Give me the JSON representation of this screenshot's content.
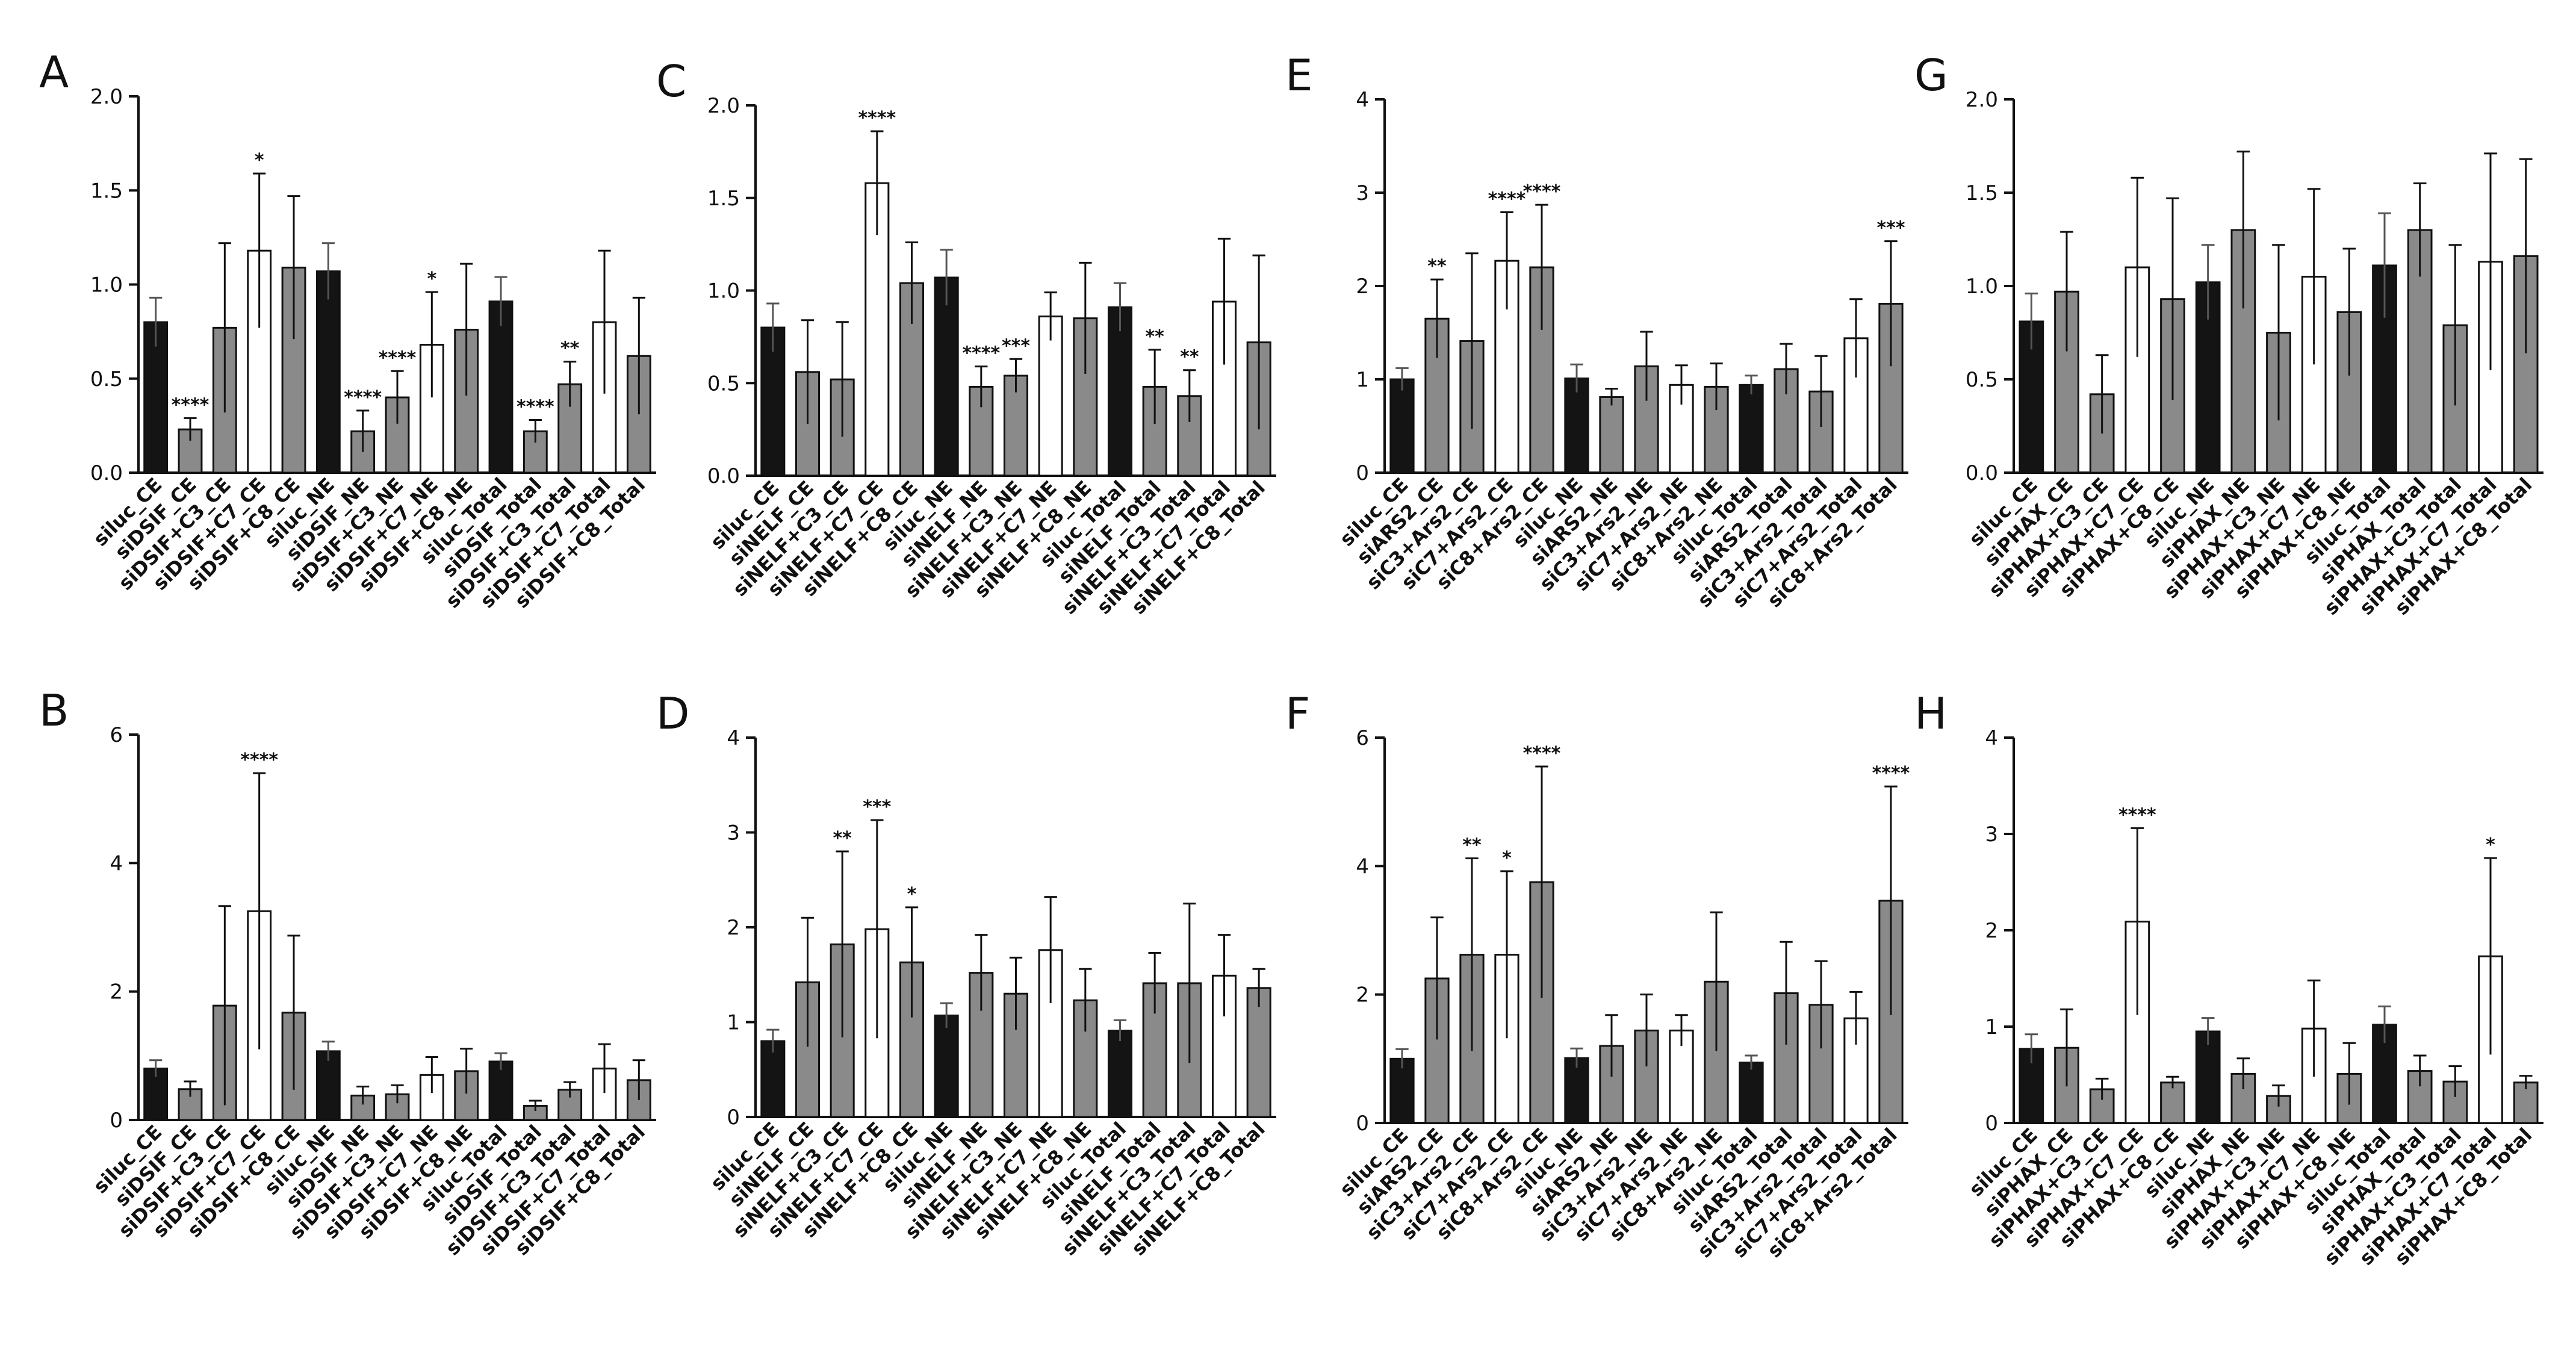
{
  "colors": {
    "black": "#141414",
    "gray": "#8a8a8a",
    "white": "#ffffff",
    "axis": "#111111"
  },
  "chart_data": [
    {
      "panel": "A",
      "type": "bar",
      "ylim": [
        0,
        2.0
      ],
      "yticks": [
        0.0,
        0.5,
        1.0,
        1.5,
        2.0
      ],
      "categories": [
        "siluc_CE",
        "siDSIF_CE",
        "siDSIF+C3_CE",
        "siDSIF+C7_CE",
        "siDSIF+C8_CE",
        "siluc_NE",
        "siDSIF_NE",
        "siDSIF+C3_NE",
        "siDSIF+C7_NE",
        "siDSIF+C8_NE",
        "siluc_Total",
        "siDSIF_Total",
        "siDSIF+C3_Total",
        "siDSIF+C7_Total",
        "siDSIF+C8_Total"
      ],
      "values": [
        0.8,
        0.23,
        0.77,
        1.18,
        1.09,
        1.07,
        0.22,
        0.4,
        0.68,
        0.76,
        0.91,
        0.22,
        0.47,
        0.8,
        0.62
      ],
      "errors": [
        0.13,
        0.06,
        0.45,
        0.41,
        0.38,
        0.15,
        0.11,
        0.14,
        0.28,
        0.35,
        0.13,
        0.06,
        0.12,
        0.38,
        0.31
      ],
      "bar_colors": [
        "black",
        "gray",
        "gray",
        "white",
        "gray",
        "black",
        "gray",
        "gray",
        "white",
        "gray",
        "black",
        "gray",
        "gray",
        "white",
        "gray"
      ],
      "significance": [
        "",
        "****",
        "",
        "*",
        "",
        "",
        "****",
        "****",
        "*",
        "",
        "",
        "****",
        "**",
        "",
        ""
      ]
    },
    {
      "panel": "B",
      "type": "bar",
      "ylim": [
        0,
        6
      ],
      "yticks": [
        0,
        2,
        4,
        6
      ],
      "categories": [
        "siluc_CE",
        "siDSIF_CE",
        "siDSIF+C3_CE",
        "siDSIF+C7_CE",
        "siDSIF+C8_CE",
        "siluc_NE",
        "siDSIF_NE",
        "siDSIF+C3_NE",
        "siDSIF+C7_NE",
        "siDSIF+C8_NE",
        "siluc_Total",
        "siDSIF_Total",
        "siDSIF+C3_Total",
        "siDSIF+C7_Total",
        "siDSIF+C8_Total"
      ],
      "values": [
        0.8,
        0.48,
        1.78,
        3.25,
        1.67,
        1.07,
        0.38,
        0.4,
        0.7,
        0.76,
        0.91,
        0.22,
        0.47,
        0.8,
        0.62
      ],
      "errors": [
        0.13,
        0.12,
        1.55,
        2.15,
        1.2,
        0.15,
        0.14,
        0.14,
        0.28,
        0.35,
        0.13,
        0.08,
        0.12,
        0.38,
        0.31
      ],
      "bar_colors": [
        "black",
        "gray",
        "gray",
        "white",
        "gray",
        "black",
        "gray",
        "gray",
        "white",
        "gray",
        "black",
        "gray",
        "gray",
        "white",
        "gray"
      ],
      "significance": [
        "",
        "",
        "",
        "****",
        "",
        "",
        "",
        "",
        "",
        "",
        "",
        "",
        "",
        "",
        ""
      ]
    },
    {
      "panel": "C",
      "type": "bar",
      "ylim": [
        0,
        2.0
      ],
      "yticks": [
        0.0,
        0.5,
        1.0,
        1.5,
        2.0
      ],
      "categories": [
        "siluc_CE",
        "siNELF_CE",
        "siNELF+C3_CE",
        "siNELF+C7_CE",
        "siNELF+C8_CE",
        "siluc_NE",
        "siNELF_NE",
        "siNELF+C3_NE",
        "siNELF+C7_NE",
        "siNELF+C8_NE",
        "siluc_Total",
        "siNELF_Total",
        "siNELF+C3_Total",
        "siNELF+C7_Total",
        "siNELF+C8_Total"
      ],
      "values": [
        0.8,
        0.56,
        0.52,
        1.58,
        1.04,
        1.07,
        0.48,
        0.54,
        0.86,
        0.85,
        0.91,
        0.48,
        0.43,
        0.94,
        0.72
      ],
      "errors": [
        0.13,
        0.28,
        0.31,
        0.28,
        0.22,
        0.15,
        0.11,
        0.09,
        0.13,
        0.3,
        0.13,
        0.2,
        0.14,
        0.34,
        0.47
      ],
      "bar_colors": [
        "black",
        "gray",
        "gray",
        "white",
        "gray",
        "black",
        "gray",
        "gray",
        "white",
        "gray",
        "black",
        "gray",
        "gray",
        "white",
        "gray"
      ],
      "significance": [
        "",
        "",
        "",
        "****",
        "",
        "",
        "****",
        "***",
        "",
        "",
        "",
        "**",
        "**",
        "",
        ""
      ]
    },
    {
      "panel": "D",
      "type": "bar",
      "ylim": [
        0,
        4
      ],
      "yticks": [
        0,
        1,
        2,
        3,
        4
      ],
      "categories": [
        "siluc_CE",
        "siNELF_CE",
        "siNELF+C3_CE",
        "siNELF+C7_CE",
        "siNELF+C8_CE",
        "siluc_NE",
        "siNELF_NE",
        "siNELF+C3_NE",
        "siNELF+C7_NE",
        "siNELF+C8_NE",
        "siluc_Total",
        "siNELF_Total",
        "siNELF+C3_Total",
        "siNELF+C7_Total",
        "siNELF+C8_Total"
      ],
      "values": [
        0.8,
        1.42,
        1.82,
        1.98,
        1.63,
        1.07,
        1.52,
        1.3,
        1.76,
        1.23,
        0.91,
        1.41,
        1.41,
        1.49,
        1.36
      ],
      "errors": [
        0.12,
        0.68,
        0.98,
        1.15,
        0.58,
        0.13,
        0.4,
        0.38,
        0.56,
        0.33,
        0.11,
        0.32,
        0.84,
        0.43,
        0.2
      ],
      "bar_colors": [
        "black",
        "gray",
        "gray",
        "white",
        "gray",
        "black",
        "gray",
        "gray",
        "white",
        "gray",
        "black",
        "gray",
        "gray",
        "white",
        "gray"
      ],
      "significance": [
        "",
        "",
        "**",
        "***",
        "*",
        "",
        "",
        "",
        "",
        "",
        "",
        "",
        "",
        "",
        ""
      ]
    },
    {
      "panel": "E",
      "type": "bar",
      "ylim": [
        0,
        4
      ],
      "yticks": [
        0,
        1,
        2,
        3,
        4
      ],
      "categories": [
        "siluc_CE",
        "siARS2_CE",
        "siC3+Ars2_CE",
        "siC7+Ars2_CE",
        "siC8+Ars2_CE",
        "siluc_NE",
        "siARS2_NE",
        "siC3+Ars2_NE",
        "siC7+Ars2_NE",
        "siC8+Ars2_NE",
        "siluc_Total",
        "siARS2_Total",
        "siC3+Ars2_Total",
        "siC7+Ars2_Total",
        "siC8+Ars2_Total"
      ],
      "values": [
        1.0,
        1.65,
        1.41,
        2.27,
        2.2,
        1.01,
        0.81,
        1.14,
        0.94,
        0.92,
        0.94,
        1.11,
        0.87,
        1.44,
        1.81
      ],
      "errors": [
        0.12,
        0.42,
        0.94,
        0.52,
        0.67,
        0.15,
        0.09,
        0.37,
        0.21,
        0.25,
        0.1,
        0.27,
        0.38,
        0.42,
        0.67
      ],
      "bar_colors": [
        "black",
        "gray",
        "gray",
        "white",
        "gray",
        "black",
        "gray",
        "gray",
        "white",
        "gray",
        "black",
        "gray",
        "gray",
        "white",
        "gray"
      ],
      "significance": [
        "",
        "**",
        "",
        "****",
        "****",
        "",
        "",
        "",
        "",
        "",
        "",
        "",
        "",
        "",
        "***"
      ]
    },
    {
      "panel": "F",
      "type": "bar",
      "ylim": [
        0,
        6
      ],
      "yticks": [
        0,
        2,
        4,
        6
      ],
      "categories": [
        "siluc_CE",
        "siARS2_CE",
        "siC3+Ars2_CE",
        "siC7+Ars2_CE",
        "siC8+Ars2_CE",
        "siluc_NE",
        "siARS2_NE",
        "siC3+Ars2_NE",
        "siC7+Ars2_NE",
        "siC8+Ars2_NE",
        "siluc_Total",
        "siARS2_Total",
        "siC3+Ars2_Total",
        "siC7+Ars2_Total",
        "siC8+Ars2_Total"
      ],
      "values": [
        1.0,
        2.25,
        2.62,
        2.62,
        3.75,
        1.01,
        1.2,
        1.44,
        1.44,
        2.2,
        0.94,
        2.02,
        1.84,
        1.63,
        3.46
      ],
      "errors": [
        0.15,
        0.95,
        1.5,
        1.3,
        1.8,
        0.15,
        0.48,
        0.56,
        0.24,
        1.08,
        0.11,
        0.8,
        0.68,
        0.41,
        1.78
      ],
      "bar_colors": [
        "black",
        "gray",
        "gray",
        "white",
        "gray",
        "black",
        "gray",
        "gray",
        "white",
        "gray",
        "black",
        "gray",
        "gray",
        "white",
        "gray"
      ],
      "significance": [
        "",
        "",
        "**",
        "*",
        "****",
        "",
        "",
        "",
        "",
        "",
        "",
        "",
        "",
        "",
        "****"
      ]
    },
    {
      "panel": "G",
      "type": "bar",
      "ylim": [
        0,
        2.0
      ],
      "yticks": [
        0.0,
        0.5,
        1.0,
        1.5,
        2.0
      ],
      "categories": [
        "siluc_CE",
        "siPHAX_CE",
        "siPHAX+C3_CE",
        "siPHAX+C7_CE",
        "siPHAX+C8_CE",
        "siluc_NE",
        "siPHAX_NE",
        "siPHAX+C3_NE",
        "siPHAX+C7_NE",
        "siPHAX+C8_NE",
        "siluc_Total",
        "siPHAX_Total",
        "siPHAX+C3_Total",
        "siPHAX+C7_Total",
        "siPHAX+C8_Total"
      ],
      "values": [
        0.81,
        0.97,
        0.42,
        1.1,
        0.93,
        1.02,
        1.3,
        0.75,
        1.05,
        0.86,
        1.11,
        1.3,
        0.79,
        1.13,
        1.16
      ],
      "errors": [
        0.15,
        0.32,
        0.21,
        0.48,
        0.54,
        0.2,
        0.42,
        0.47,
        0.47,
        0.34,
        0.28,
        0.25,
        0.43,
        0.58,
        0.52
      ],
      "bar_colors": [
        "black",
        "gray",
        "gray",
        "white",
        "gray",
        "black",
        "gray",
        "gray",
        "white",
        "gray",
        "black",
        "gray",
        "gray",
        "white",
        "gray"
      ],
      "significance": [
        "",
        "",
        "",
        "",
        "",
        "",
        "",
        "",
        "",
        "",
        "",
        "",
        "",
        "",
        ""
      ]
    },
    {
      "panel": "H",
      "type": "bar",
      "ylim": [
        0,
        4
      ],
      "yticks": [
        0,
        1,
        2,
        3,
        4
      ],
      "categories": [
        "siluc_CE",
        "siPHAX_CE",
        "siPHAX+C3_CE",
        "siPHAX+C7_CE",
        "siPHAX+C8_CE",
        "siluc_NE",
        "siPHAX_NE",
        "siPHAX+C3_NE",
        "siPHAX+C7_NE",
        "siPHAX+C8_NE",
        "siluc_Total",
        "siPHAX_Total",
        "siPHAX+C3_Total",
        "siPHAX+C7_Total",
        "siPHAX+C8_Total"
      ],
      "values": [
        0.77,
        0.78,
        0.35,
        2.09,
        0.42,
        0.95,
        0.51,
        0.28,
        0.98,
        0.51,
        1.02,
        0.54,
        0.43,
        1.73,
        0.42
      ],
      "errors": [
        0.15,
        0.4,
        0.11,
        0.97,
        0.06,
        0.14,
        0.16,
        0.11,
        0.5,
        0.32,
        0.19,
        0.16,
        0.16,
        1.02,
        0.07
      ],
      "bar_colors": [
        "black",
        "gray",
        "gray",
        "white",
        "gray",
        "black",
        "gray",
        "gray",
        "white",
        "gray",
        "black",
        "gray",
        "gray",
        "white",
        "gray"
      ],
      "significance": [
        "",
        "",
        "",
        "****",
        "",
        "",
        "",
        "",
        "",
        "",
        "",
        "",
        "",
        "*",
        ""
      ]
    }
  ]
}
